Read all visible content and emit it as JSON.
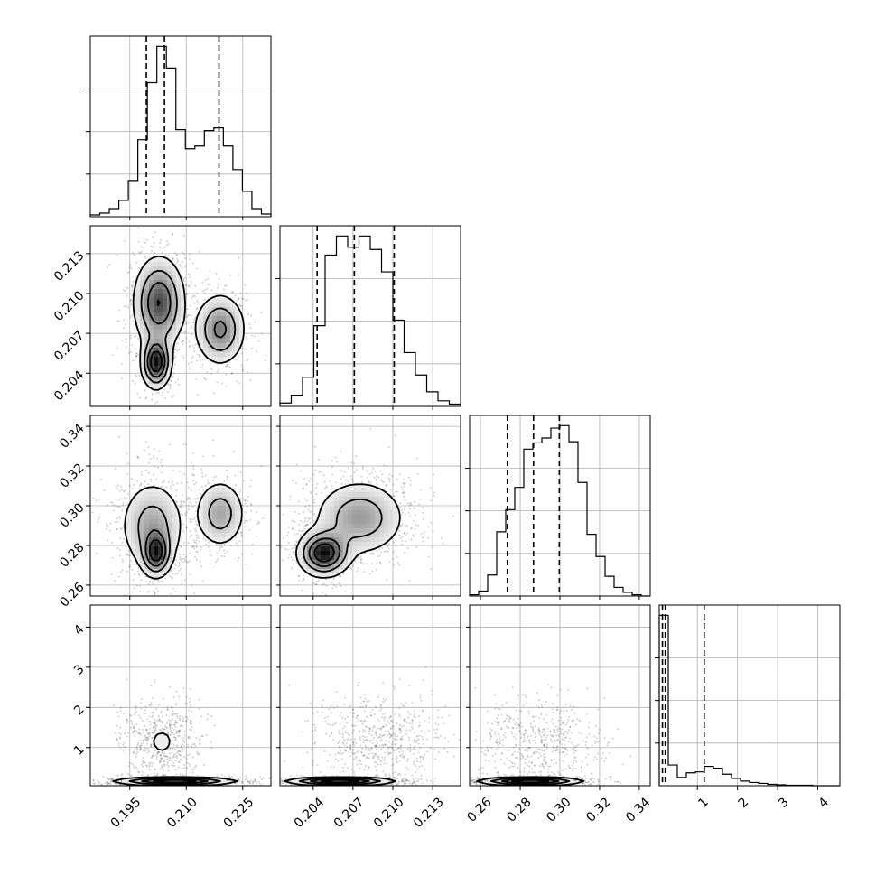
{
  "chart_data": {
    "type": "corner",
    "grid": true,
    "params": [
      {
        "ticks": [
          0.195,
          0.21,
          0.225
        ],
        "tick_labels": [
          "0.195",
          "0.210",
          "0.225"
        ],
        "range": [
          0.1845,
          0.2325
        ]
      },
      {
        "ticks": [
          0.204,
          0.207,
          0.21,
          0.213
        ],
        "tick_labels": [
          "0.204",
          "0.207",
          "0.210",
          "0.213"
        ],
        "range": [
          0.2015,
          0.2151
        ]
      },
      {
        "ticks": [
          0.26,
          0.28,
          0.3,
          0.32,
          0.34
        ],
        "tick_labels": [
          "0.26",
          "0.28",
          "0.30",
          "0.32",
          "0.34"
        ],
        "range": [
          0.2545,
          0.3455
        ]
      },
      {
        "ticks": [
          1,
          2,
          3,
          4
        ],
        "tick_labels": [
          "1",
          "2",
          "3",
          "4"
        ],
        "range": [
          0.05,
          4.55
        ]
      }
    ],
    "histograms": [
      {
        "quantiles": [
          0.1994,
          0.2042,
          0.2187
        ],
        "counts": [
          2,
          4,
          9,
          18,
          40,
          85,
          148,
          188,
          164,
          96,
          75,
          78,
          95,
          98,
          78,
          52,
          28,
          9,
          3
        ]
      },
      {
        "quantiles": [
          0.2043,
          0.2071,
          0.2101
        ],
        "counts": [
          3,
          10,
          26,
          72,
          135,
          152,
          142,
          152,
          140,
          120,
          77,
          48,
          28,
          13,
          5,
          2
        ]
      },
      {
        "quantiles": [
          0.2735,
          0.2867,
          0.2997
        ],
        "counts": [
          1,
          4,
          17,
          52,
          70,
          88,
          119,
          124,
          128,
          136,
          138,
          125,
          92,
          50,
          32,
          16,
          7,
          3,
          1,
          0
        ]
      },
      {
        "quantiles": [
          0.13,
          0.2,
          1.17
        ],
        "counts": [
          370,
          45,
          18,
          28,
          30,
          42,
          38,
          25,
          16,
          10,
          7,
          5,
          3,
          2,
          1,
          1,
          1,
          0,
          0,
          0
        ]
      }
    ],
    "pairs": [
      {
        "x": 0,
        "y": 1,
        "components": [
          {
            "mx": 0.2028,
            "my": 0.2093,
            "sx": 0.0035,
            "sy": 0.0018,
            "w": 0.5
          },
          {
            "mx": 0.219,
            "my": 0.2073,
            "sx": 0.0035,
            "sy": 0.0014,
            "w": 0.3
          },
          {
            "mx": 0.202,
            "my": 0.2048,
            "sx": 0.002,
            "sy": 0.001,
            "w": 0.2
          }
        ]
      },
      {
        "x": 0,
        "y": 2,
        "components": [
          {
            "mx": 0.201,
            "my": 0.29,
            "sx": 0.0045,
            "sy": 0.012,
            "w": 0.5
          },
          {
            "mx": 0.219,
            "my": 0.296,
            "sx": 0.0035,
            "sy": 0.009,
            "w": 0.3
          },
          {
            "mx": 0.202,
            "my": 0.276,
            "sx": 0.002,
            "sy": 0.006,
            "w": 0.2
          }
        ]
      },
      {
        "x": 1,
        "y": 2,
        "components": [
          {
            "mx": 0.2075,
            "my": 0.294,
            "sx": 0.0018,
            "sy": 0.01,
            "w": 0.6
          },
          {
            "mx": 0.2048,
            "my": 0.276,
            "sx": 0.001,
            "sy": 0.006,
            "w": 0.4
          }
        ]
      },
      {
        "x": 0,
        "y": 3,
        "components": [
          {
            "mx": 0.2035,
            "my": 1.15,
            "sx": 0.0045,
            "sy": 0.45,
            "w": 0.4
          },
          {
            "mx": 0.207,
            "my": 0.15,
            "sx": 0.008,
            "sy": 0.05,
            "w": 0.6
          }
        ]
      },
      {
        "x": 1,
        "y": 3,
        "components": [
          {
            "mx": 0.209,
            "my": 1.15,
            "sx": 0.002,
            "sy": 0.45,
            "w": 0.4
          },
          {
            "mx": 0.206,
            "my": 0.15,
            "sx": 0.002,
            "sy": 0.05,
            "w": 0.6
          }
        ]
      },
      {
        "x": 2,
        "y": 3,
        "components": [
          {
            "mx": 0.29,
            "my": 1.1,
            "sx": 0.013,
            "sy": 0.45,
            "w": 0.4
          },
          {
            "mx": 0.285,
            "my": 0.15,
            "sx": 0.013,
            "sy": 0.05,
            "w": 0.6
          }
        ]
      }
    ]
  }
}
